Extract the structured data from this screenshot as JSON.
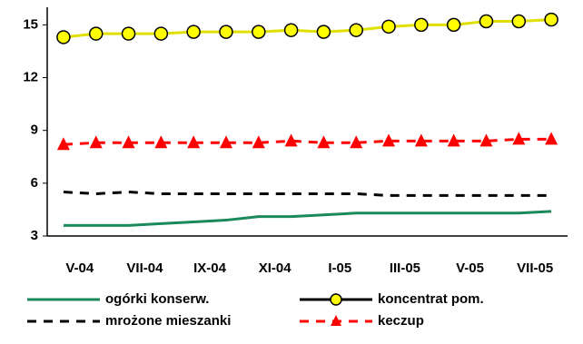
{
  "chart_data": {
    "type": "line",
    "categories": [
      "V-04",
      null,
      "VII-04",
      null,
      "IX-04",
      null,
      "XI-04",
      null,
      "I-05",
      null,
      "III-05",
      null,
      "V-05",
      null,
      "VII-05",
      null
    ],
    "series": [
      {
        "name": "ogórki konserw.",
        "color": "#1a8a5a",
        "dash": false,
        "marker": null,
        "values": [
          3.6,
          3.6,
          3.6,
          3.7,
          3.8,
          3.9,
          4.1,
          4.1,
          4.2,
          4.3,
          4.3,
          4.3,
          4.3,
          4.3,
          4.3,
          4.4
        ]
      },
      {
        "name": "koncentrat pom.",
        "color": "#ffff00",
        "dash": false,
        "marker": "circle",
        "values": [
          14.3,
          14.5,
          14.5,
          14.5,
          14.6,
          14.6,
          14.6,
          14.7,
          14.6,
          14.7,
          14.9,
          15.0,
          15.0,
          15.2,
          15.2,
          15.3
        ]
      },
      {
        "name": "mrożone mieszanki",
        "color": "#000000",
        "dash": true,
        "marker": null,
        "values": [
          5.5,
          5.4,
          5.5,
          5.4,
          5.4,
          5.4,
          5.4,
          5.4,
          5.4,
          5.4,
          5.3,
          5.3,
          5.3,
          5.3,
          5.3,
          5.3
        ]
      },
      {
        "name": "keczup",
        "color": "#ff0000",
        "dash": true,
        "marker": "triangle",
        "values": [
          8.2,
          8.3,
          8.3,
          8.3,
          8.3,
          8.3,
          8.3,
          8.4,
          8.3,
          8.3,
          8.4,
          8.4,
          8.4,
          8.4,
          8.5,
          8.5
        ]
      }
    ],
    "ylim": [
      3,
      16
    ],
    "yticks": [
      3,
      6,
      9,
      12,
      15
    ],
    "grid": false,
    "legend": "bottom"
  }
}
